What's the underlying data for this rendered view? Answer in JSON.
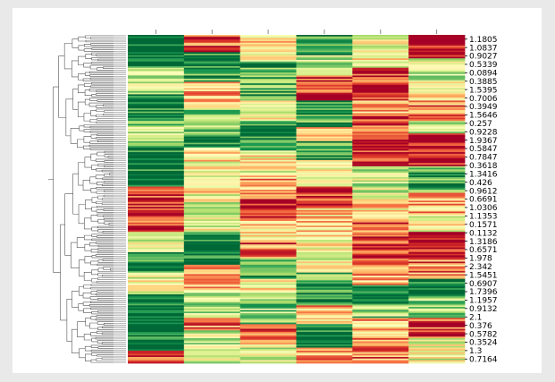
{
  "chart_data": {
    "type": "heatmap",
    "title": "",
    "xlabel": "",
    "ylabel": "",
    "columns": 6,
    "colormap": "RdYlGn",
    "colormap_colors": [
      "#a50026",
      "#d73027",
      "#f46d43",
      "#fdae61",
      "#fee08b",
      "#ffffbf",
      "#d9ef8b",
      "#a6d96a",
      "#66bd63",
      "#1a9850",
      "#006837"
    ],
    "row_labels": [
      "1.1805",
      "1.0837",
      "0.9027",
      "0.5339",
      "0.0894",
      "0.3885",
      "1.5395",
      "0.7006",
      "0.3949",
      "1.5646",
      "0.257",
      "0.9228",
      "1.9367",
      "0.5847",
      "0.7847",
      "0.3618",
      "1.3416",
      "0.426",
      "0.9612",
      "0.6691",
      "1.0306",
      "1.1353",
      "0.1571",
      "0.1132",
      "1.3186",
      "0.6571",
      "1.978",
      "2.342",
      "1.5451",
      "0.6907",
      "1.7396",
      "1.1957",
      "0.9132",
      "2.1",
      "0.376",
      "0.5782",
      "0.3524",
      "1.3",
      "0.7164"
    ],
    "column_blocks": [
      [
        [
          0,
          1.0
        ],
        [
          0.1,
          0.6
        ],
        [
          0.18,
          0.95
        ],
        [
          0.26,
          0.7
        ],
        [
          0.34,
          1.0
        ],
        [
          0.46,
          0.1
        ],
        [
          0.6,
          0.55
        ],
        [
          0.66,
          0.9
        ],
        [
          0.72,
          0.55
        ],
        [
          0.79,
          1.0
        ],
        [
          0.96,
          0.1
        ],
        [
          1.0,
          0.1
        ]
      ],
      [
        [
          0,
          0.15
        ],
        [
          0.05,
          0.85
        ],
        [
          0.14,
          0.3
        ],
        [
          0.22,
          0.75
        ],
        [
          0.3,
          0.95
        ],
        [
          0.34,
          0.45
        ],
        [
          0.48,
          0.55
        ],
        [
          0.6,
          1.0
        ],
        [
          0.7,
          0.35
        ],
        [
          0.78,
          0.7
        ],
        [
          0.86,
          0.25
        ],
        [
          0.9,
          0.6
        ],
        [
          1.0,
          0.6
        ]
      ],
      [
        [
          0,
          0.4
        ],
        [
          0.08,
          0.8
        ],
        [
          0.2,
          0.5
        ],
        [
          0.26,
          0.95
        ],
        [
          0.35,
          0.5
        ],
        [
          0.42,
          0.3
        ],
        [
          0.5,
          0.05
        ],
        [
          0.56,
          0.4
        ],
        [
          0.62,
          0.2
        ],
        [
          0.68,
          0.8
        ],
        [
          0.74,
          0.5
        ],
        [
          0.8,
          0.7
        ],
        [
          0.88,
          0.15
        ],
        [
          0.94,
          0.55
        ],
        [
          1.0,
          0.55
        ]
      ],
      [
        [
          0,
          0.9
        ],
        [
          0.06,
          0.65
        ],
        [
          0.12,
          0.1
        ],
        [
          0.2,
          0.85
        ],
        [
          0.28,
          0.25
        ],
        [
          0.32,
          0.9
        ],
        [
          0.38,
          0.55
        ],
        [
          0.46,
          0.1
        ],
        [
          0.52,
          0.4
        ],
        [
          0.6,
          0.5
        ],
        [
          0.66,
          0.55
        ],
        [
          0.72,
          0.85
        ],
        [
          0.78,
          0.95
        ],
        [
          0.82,
          0.35
        ],
        [
          0.88,
          1.0
        ],
        [
          0.95,
          0.3
        ],
        [
          1.0,
          0.3
        ]
      ],
      [
        [
          0,
          0.5
        ],
        [
          0.1,
          0.15
        ],
        [
          0.2,
          0.35
        ],
        [
          0.24,
          0.1
        ],
        [
          0.3,
          0.05
        ],
        [
          0.4,
          0.6
        ],
        [
          0.5,
          0.4
        ],
        [
          0.56,
          0.2
        ],
        [
          0.64,
          0.1
        ],
        [
          0.7,
          0.3
        ],
        [
          0.76,
          0.9
        ],
        [
          0.82,
          0.7
        ],
        [
          0.86,
          0.35
        ],
        [
          0.92,
          0.25
        ],
        [
          1.0,
          0.25
        ]
      ],
      [
        [
          0,
          0.0
        ],
        [
          0.07,
          0.6
        ],
        [
          0.14,
          0.45
        ],
        [
          0.2,
          0.25
        ],
        [
          0.26,
          0.6
        ],
        [
          0.3,
          0.0
        ],
        [
          0.4,
          0.85
        ],
        [
          0.48,
          0.35
        ],
        [
          0.54,
          0.5
        ],
        [
          0.6,
          0.05
        ],
        [
          0.68,
          0.25
        ],
        [
          0.74,
          0.95
        ],
        [
          0.8,
          0.7
        ],
        [
          0.86,
          0.2
        ],
        [
          0.92,
          0.55
        ],
        [
          1.0,
          0.55
        ]
      ]
    ]
  }
}
